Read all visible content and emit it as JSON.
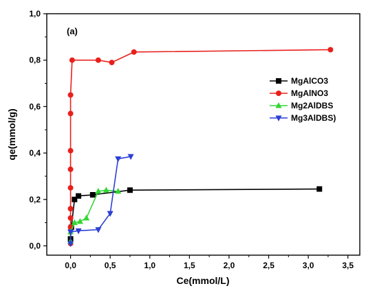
{
  "chart_data": {
    "type": "line",
    "panel_label": "(a)",
    "xlabel": "Ce(mmol/L)",
    "ylabel": "qe(mmol/g)",
    "xlim": [
      -0.3,
      3.65
    ],
    "ylim": [
      -0.04,
      1.0
    ],
    "x_ticks": [
      "0,0",
      "0,5",
      "1,0",
      "1,5",
      "2,0",
      "2,5",
      "3,0",
      "3,5"
    ],
    "x_tick_values": [
      0.0,
      0.5,
      1.0,
      1.5,
      2.0,
      2.5,
      3.0,
      3.5
    ],
    "y_ticks": [
      "0,0",
      "0,2",
      "0,4",
      "0,6",
      "0,8",
      "1,0"
    ],
    "y_tick_values": [
      0.0,
      0.2,
      0.4,
      0.6,
      0.8,
      1.0
    ],
    "legend_position": "right",
    "series": [
      {
        "name": "MgAlCO3",
        "color": "#000000",
        "marker": "square",
        "x": [
          0.0,
          0.01,
          0.05,
          0.1,
          0.28,
          0.75,
          3.14
        ],
        "y": [
          0.03,
          0.08,
          0.2,
          0.215,
          0.22,
          0.24,
          0.245
        ]
      },
      {
        "name": "MgAlNO3",
        "color": "#e8201c",
        "marker": "circle",
        "x": [
          0.0,
          0.0,
          0.0,
          0.0,
          0.0,
          0.0,
          0.0,
          0.0,
          0.0,
          0.02,
          0.35,
          0.52,
          0.8,
          3.28
        ],
        "y": [
          0.01,
          0.08,
          0.12,
          0.16,
          0.25,
          0.33,
          0.41,
          0.57,
          0.65,
          0.8,
          0.8,
          0.79,
          0.835,
          0.845
        ]
      },
      {
        "name": "Mg2AlDBS",
        "color": "#33d633",
        "marker": "triangle-up",
        "x": [
          0.0,
          0.0,
          0.05,
          0.12,
          0.2,
          0.35,
          0.45,
          0.6
        ],
        "y": [
          0.02,
          0.06,
          0.1,
          0.105,
          0.12,
          0.235,
          0.24,
          0.235
        ]
      },
      {
        "name": "Mg3AlDBS)",
        "color": "#2c3fd4",
        "marker": "triangle-down",
        "x": [
          0.0,
          0.0,
          0.1,
          0.35,
          0.5,
          0.6,
          0.76
        ],
        "y": [
          0.01,
          0.06,
          0.065,
          0.07,
          0.14,
          0.375,
          0.385
        ]
      }
    ]
  }
}
